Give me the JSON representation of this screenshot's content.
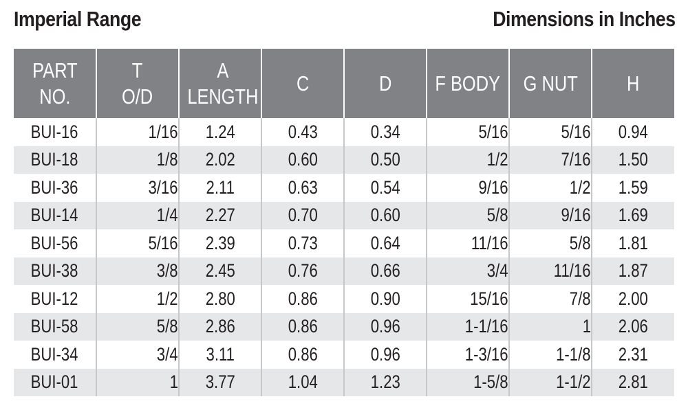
{
  "title_left": "Imperial Range",
  "title_right": "Dimensions in Inches",
  "columns": [
    "PART\nNO.",
    "T\nO/D",
    "A\nLENGTH",
    "C",
    "D",
    "F BODY",
    "G NUT",
    "H"
  ],
  "rows": [
    [
      "BUI-16",
      "1/16",
      "1.24",
      "0.43",
      "0.34",
      "5/16",
      "5/16",
      "0.94"
    ],
    [
      "BUI-18",
      "1/8",
      "2.02",
      "0.60",
      "0.50",
      "1/2",
      "7/16",
      "1.50"
    ],
    [
      "BUI-36",
      "3/16",
      "2.11",
      "0.63",
      "0.54",
      "9/16",
      "1/2",
      "1.59"
    ],
    [
      "BUI-14",
      "1/4",
      "2.27",
      "0.70",
      "0.60",
      "5/8",
      "9/16",
      "1.69"
    ],
    [
      "BUI-56",
      "5/16",
      "2.39",
      "0.73",
      "0.64",
      "11/16",
      "5/8",
      "1.81"
    ],
    [
      "BUI-38",
      "3/8",
      "2.45",
      "0.76",
      "0.66",
      "3/4",
      "11/16",
      "1.87"
    ],
    [
      "BUI-12",
      "1/2",
      "2.80",
      "0.86",
      "0.90",
      "15/16",
      "7/8",
      "2.00"
    ],
    [
      "BUI-58",
      "5/8",
      "2.86",
      "0.86",
      "0.96",
      "1-1/16",
      "1",
      "2.06"
    ],
    [
      "BUI-34",
      "3/4",
      "3.11",
      "0.86",
      "0.96",
      "1-3/16",
      "1-1/8",
      "2.31"
    ],
    [
      "BUI-01",
      "1",
      "3.77",
      "1.04",
      "1.23",
      "1-5/8",
      "1-1/2",
      "2.81"
    ]
  ],
  "colors": {
    "header_bg": "#808285",
    "header_text": "#ffffff",
    "stripe_bg": "#e6e7e8",
    "text": "#231f20",
    "rule": "#c6c7c9"
  }
}
